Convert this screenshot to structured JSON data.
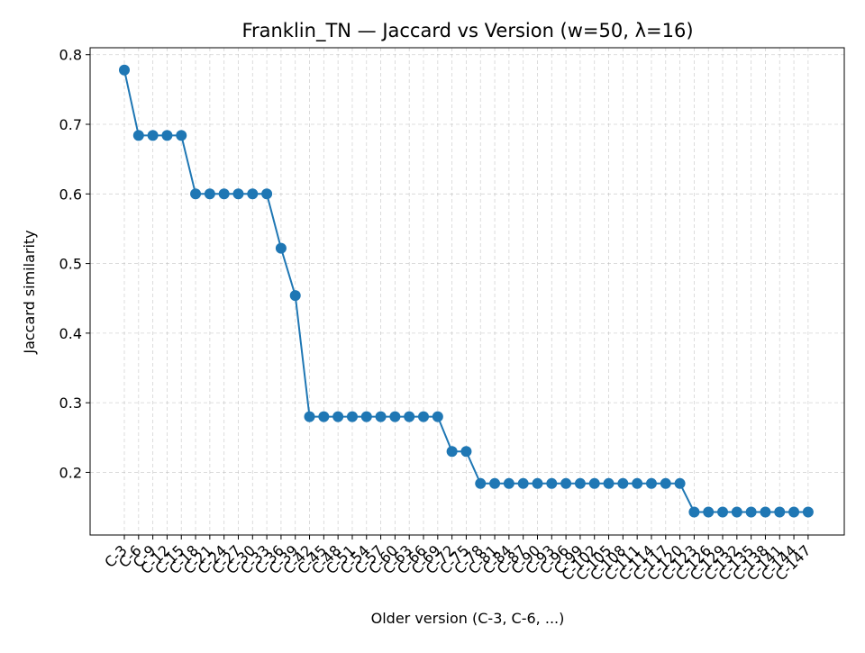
{
  "chart_data": {
    "type": "line",
    "title": "Franklin_TN — Jaccard vs Version (w=50, λ=16)",
    "xlabel": "Older version (C-3, C-6, ...)",
    "ylabel": "Jaccard similarity",
    "categories": [
      "C-3",
      "C-6",
      "C-9",
      "C-12",
      "C-15",
      "C-18",
      "C-21",
      "C-24",
      "C-27",
      "C-30",
      "C-33",
      "C-36",
      "C-39",
      "C-42",
      "C-45",
      "C-48",
      "C-51",
      "C-54",
      "C-57",
      "C-60",
      "C-63",
      "C-66",
      "C-69",
      "C-72",
      "C-75",
      "C-78",
      "C-81",
      "C-84",
      "C-87",
      "C-90",
      "C-93",
      "C-96",
      "C-99",
      "C-102",
      "C-105",
      "C-108",
      "C-111",
      "C-114",
      "C-117",
      "C-120",
      "C-123",
      "C-126",
      "C-129",
      "C-132",
      "C-135",
      "C-138",
      "C-141",
      "C-144",
      "C-147"
    ],
    "series": [
      {
        "values": [
          0.778,
          0.684,
          0.684,
          0.684,
          0.684,
          0.6,
          0.6,
          0.6,
          0.6,
          0.6,
          0.6,
          0.522,
          0.454,
          0.28,
          0.28,
          0.28,
          0.28,
          0.28,
          0.28,
          0.28,
          0.28,
          0.28,
          0.28,
          0.23,
          0.23,
          0.184,
          0.184,
          0.184,
          0.184,
          0.184,
          0.184,
          0.184,
          0.184,
          0.184,
          0.184,
          0.184,
          0.184,
          0.184,
          0.184,
          0.184,
          0.143,
          0.143,
          0.143,
          0.143,
          0.143,
          0.143,
          0.143,
          0.143,
          0.143
        ],
        "color": "#1f77b4"
      }
    ],
    "ylim": [
      0.11,
      0.81
    ],
    "yticks": [
      "0.2",
      "0.3",
      "0.4",
      "0.5",
      "0.6",
      "0.7",
      "0.8"
    ],
    "grid": true,
    "legend": "none"
  }
}
